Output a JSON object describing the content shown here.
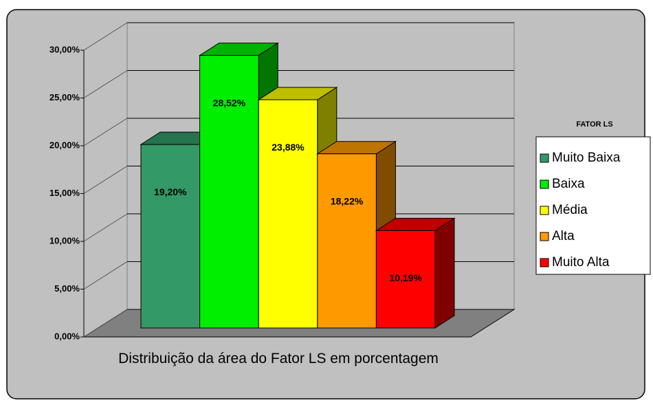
{
  "chart_data": {
    "type": "bar3d",
    "categories": [
      "Distribuição da área do Fator LS em porcentagem"
    ],
    "legend_title": "FATOR LS",
    "legend": "right",
    "grid": true,
    "ylim": [
      0,
      30
    ],
    "yticks": [
      {
        "value": 0,
        "label": "0,00%"
      },
      {
        "value": 5,
        "label": "5,00%"
      },
      {
        "value": 10,
        "label": "10,00%"
      },
      {
        "value": 15,
        "label": "15,00%"
      },
      {
        "value": 20,
        "label": "20,00%"
      },
      {
        "value": 25,
        "label": "25,00%"
      },
      {
        "value": 30,
        "label": "30,00%"
      }
    ],
    "series": [
      {
        "name": "Muito Baixa",
        "color": "#339966",
        "values": [
          19.2
        ],
        "value_labels": [
          "19,20%"
        ]
      },
      {
        "name": "Baixa",
        "color": "#00ee00",
        "values": [
          28.52
        ],
        "value_labels": [
          "28,52%"
        ]
      },
      {
        "name": "Média",
        "color": "#ffff00",
        "values": [
          23.88
        ],
        "value_labels": [
          "23,88%"
        ]
      },
      {
        "name": "Alta",
        "color": "#ff9900",
        "values": [
          18.22
        ],
        "value_labels": [
          "18,22%"
        ]
      },
      {
        "name": "Muito Alta",
        "color": "#ff0000",
        "values": [
          10.19
        ],
        "value_labels": [
          "10,19%"
        ]
      }
    ]
  }
}
